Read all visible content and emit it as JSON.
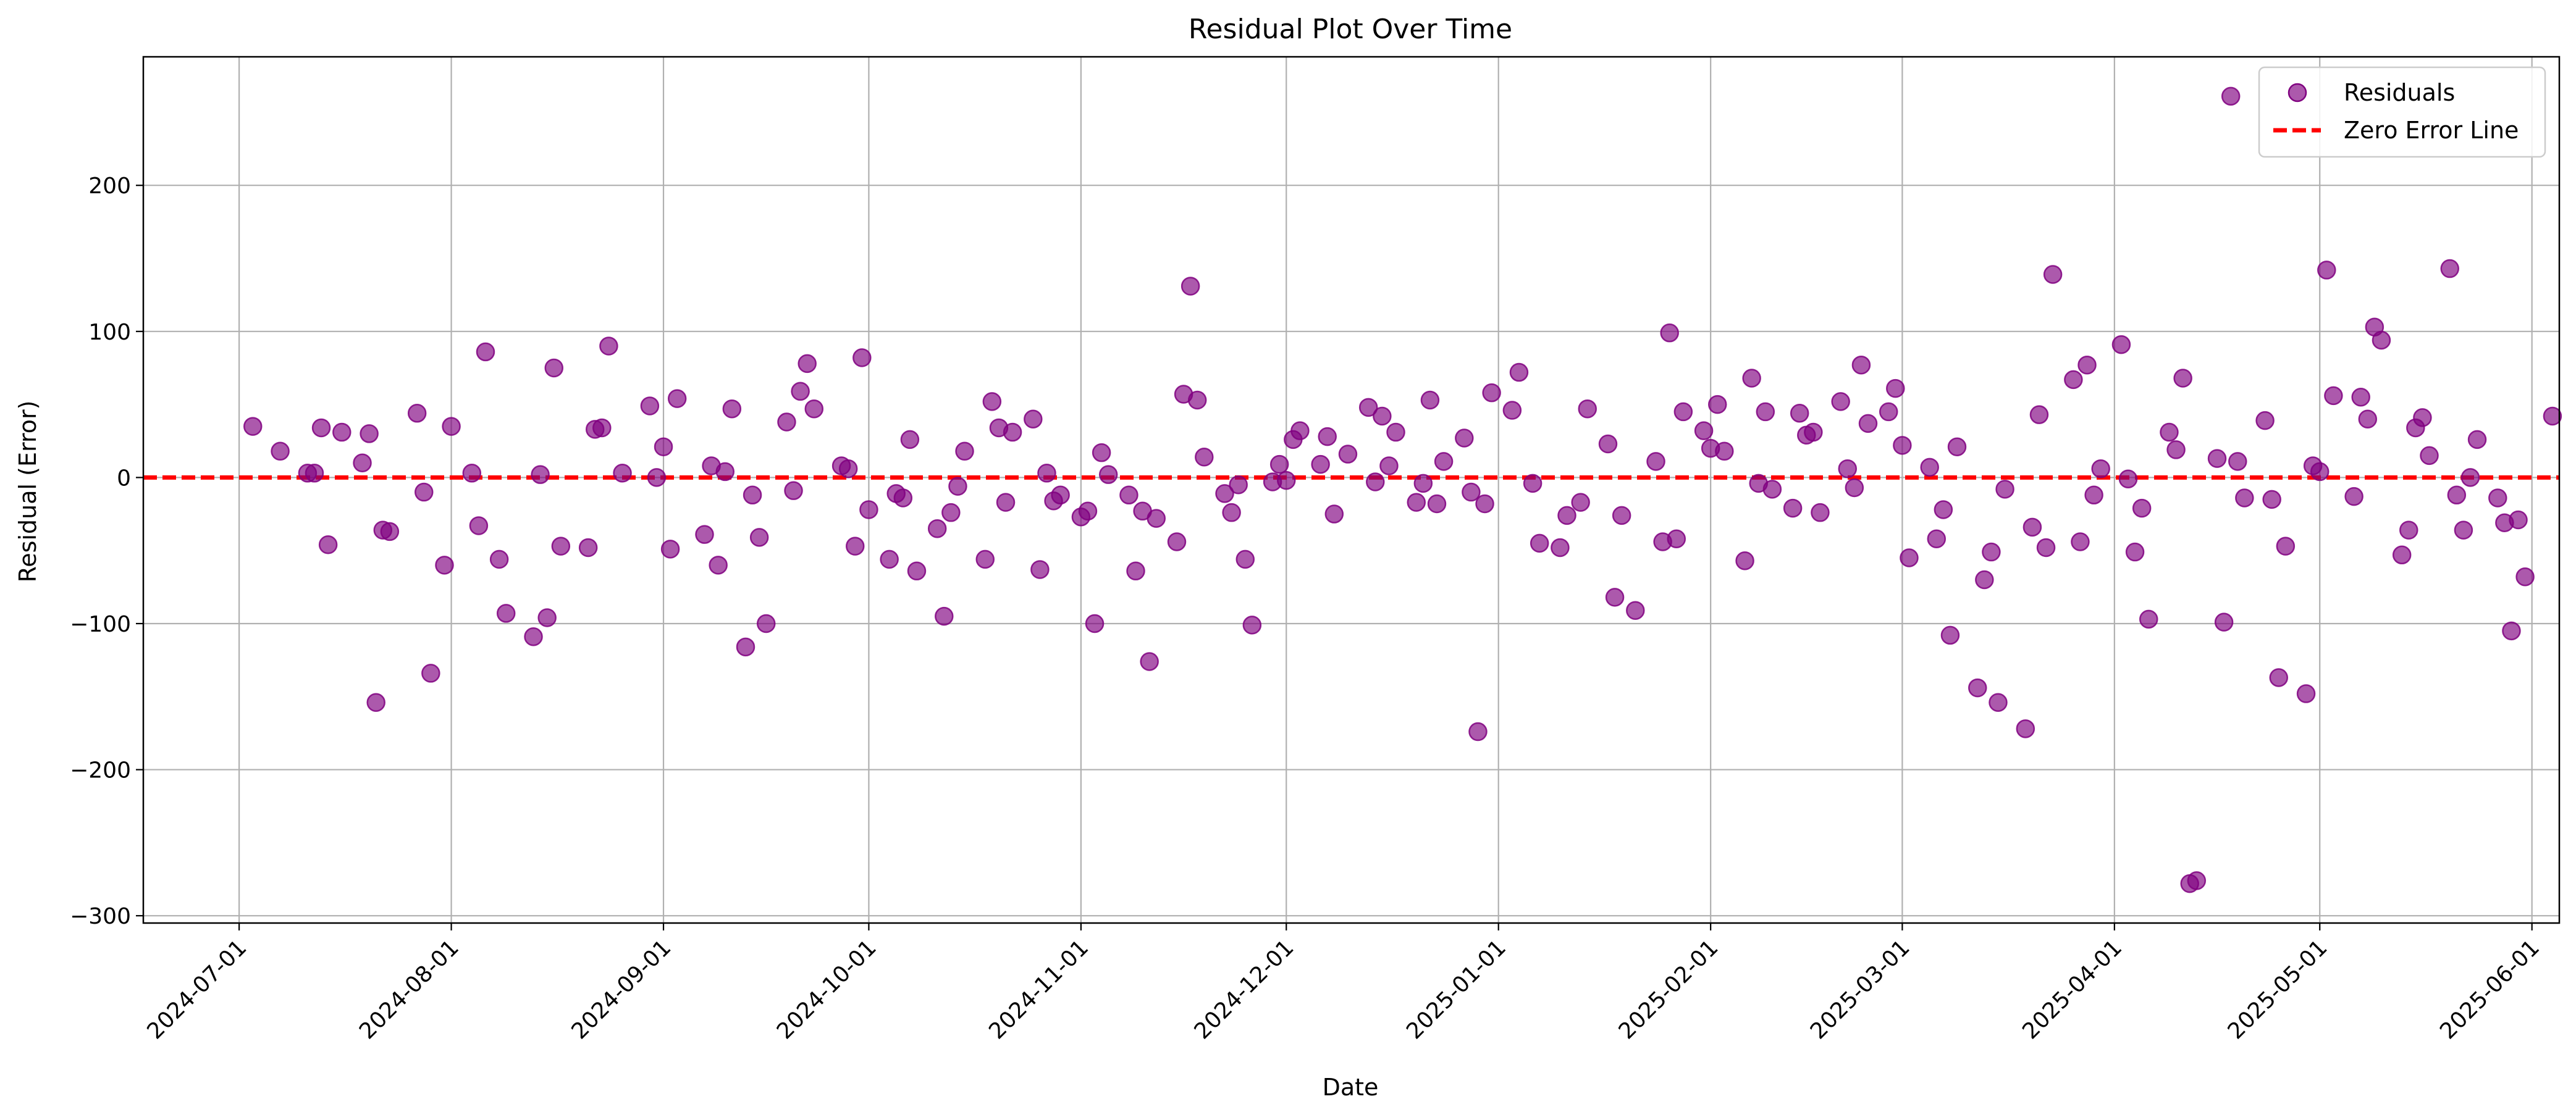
{
  "chart_data": {
    "type": "scatter",
    "title": "Residual Plot Over Time",
    "xlabel": "Date",
    "ylabel": "Residual (Error)",
    "xlim": [
      "2024-06-17",
      "2025-06-05"
    ],
    "ylim": [
      -305,
      288
    ],
    "grid": true,
    "legend_position": "upper right",
    "x_ticks": [
      "2024-07-01",
      "2024-08-01",
      "2024-09-01",
      "2024-10-01",
      "2024-11-01",
      "2024-12-01",
      "2025-01-01",
      "2025-02-01",
      "2025-03-01",
      "2025-04-01",
      "2025-05-01",
      "2025-06-01"
    ],
    "y_ticks": [
      -300,
      -200,
      -100,
      0,
      100,
      200
    ],
    "y_tick_labels": [
      "−300",
      "−200",
      "−100",
      "0",
      "100",
      "200"
    ],
    "series": [
      {
        "name": "Residuals",
        "kind": "scatter",
        "color": "#800080",
        "alpha": 0.65,
        "points": [
          [
            "2024-07-03",
            35
          ],
          [
            "2024-07-07",
            18
          ],
          [
            "2024-07-11",
            3
          ],
          [
            "2024-07-12",
            3
          ],
          [
            "2024-07-13",
            34
          ],
          [
            "2024-07-14",
            -46
          ],
          [
            "2024-07-16",
            31
          ],
          [
            "2024-07-19",
            10
          ],
          [
            "2024-07-20",
            30
          ],
          [
            "2024-07-21",
            -154
          ],
          [
            "2024-07-22",
            -36
          ],
          [
            "2024-07-23",
            -37
          ],
          [
            "2024-07-27",
            44
          ],
          [
            "2024-07-28",
            -10
          ],
          [
            "2024-07-29",
            -134
          ],
          [
            "2024-07-31",
            -60
          ],
          [
            "2024-08-01",
            35
          ],
          [
            "2024-08-04",
            3
          ],
          [
            "2024-08-05",
            -33
          ],
          [
            "2024-08-06",
            86
          ],
          [
            "2024-08-08",
            -56
          ],
          [
            "2024-08-09",
            -93
          ],
          [
            "2024-08-13",
            -109
          ],
          [
            "2024-08-14",
            2
          ],
          [
            "2024-08-15",
            -96
          ],
          [
            "2024-08-16",
            75
          ],
          [
            "2024-08-17",
            -47
          ],
          [
            "2024-08-21",
            -48
          ],
          [
            "2024-08-22",
            33
          ],
          [
            "2024-08-23",
            34
          ],
          [
            "2024-08-24",
            90
          ],
          [
            "2024-08-26",
            3
          ],
          [
            "2024-08-30",
            49
          ],
          [
            "2024-08-31",
            0
          ],
          [
            "2024-09-01",
            21
          ],
          [
            "2024-09-02",
            -49
          ],
          [
            "2024-09-03",
            54
          ],
          [
            "2024-09-07",
            -39
          ],
          [
            "2024-09-08",
            8
          ],
          [
            "2024-09-09",
            -60
          ],
          [
            "2024-09-10",
            4
          ],
          [
            "2024-09-11",
            47
          ],
          [
            "2024-09-13",
            -116
          ],
          [
            "2024-09-14",
            -12
          ],
          [
            "2024-09-15",
            -41
          ],
          [
            "2024-09-16",
            -100
          ],
          [
            "2024-09-19",
            38
          ],
          [
            "2024-09-20",
            -9
          ],
          [
            "2024-09-21",
            59
          ],
          [
            "2024-09-22",
            78
          ],
          [
            "2024-09-23",
            47
          ],
          [
            "2024-09-27",
            8
          ],
          [
            "2024-09-28",
            6
          ],
          [
            "2024-09-29",
            -47
          ],
          [
            "2024-09-30",
            82
          ],
          [
            "2024-10-01",
            -22
          ],
          [
            "2024-10-04",
            -56
          ],
          [
            "2024-10-05",
            -11
          ],
          [
            "2024-10-06",
            -14
          ],
          [
            "2024-10-07",
            26
          ],
          [
            "2024-10-08",
            -64
          ],
          [
            "2024-10-11",
            -35
          ],
          [
            "2024-10-12",
            -95
          ],
          [
            "2024-10-13",
            -24
          ],
          [
            "2024-10-14",
            -6
          ],
          [
            "2024-10-15",
            18
          ],
          [
            "2024-10-18",
            -56
          ],
          [
            "2024-10-19",
            52
          ],
          [
            "2024-10-20",
            34
          ],
          [
            "2024-10-21",
            -17
          ],
          [
            "2024-10-22",
            31
          ],
          [
            "2024-10-25",
            40
          ],
          [
            "2024-10-26",
            -63
          ],
          [
            "2024-10-27",
            3
          ],
          [
            "2024-10-28",
            -16
          ],
          [
            "2024-10-29",
            -12
          ],
          [
            "2024-11-01",
            -27
          ],
          [
            "2024-11-02",
            -23
          ],
          [
            "2024-11-03",
            -100
          ],
          [
            "2024-11-04",
            17
          ],
          [
            "2024-11-05",
            2
          ],
          [
            "2024-11-08",
            -12
          ],
          [
            "2024-11-09",
            -64
          ],
          [
            "2024-11-10",
            -23
          ],
          [
            "2024-11-11",
            -126
          ],
          [
            "2024-11-12",
            -28
          ],
          [
            "2024-11-15",
            -44
          ],
          [
            "2024-11-16",
            57
          ],
          [
            "2024-11-17",
            131
          ],
          [
            "2024-11-18",
            53
          ],
          [
            "2024-11-19",
            14
          ],
          [
            "2024-11-22",
            -11
          ],
          [
            "2024-11-23",
            -24
          ],
          [
            "2024-11-24",
            -5
          ],
          [
            "2024-11-25",
            -56
          ],
          [
            "2024-11-26",
            -101
          ],
          [
            "2024-11-29",
            -3
          ],
          [
            "2024-11-30",
            9
          ],
          [
            "2024-12-01",
            -2
          ],
          [
            "2024-12-02",
            26
          ],
          [
            "2024-12-03",
            32
          ],
          [
            "2024-12-06",
            9
          ],
          [
            "2024-12-07",
            28
          ],
          [
            "2024-12-08",
            -25
          ],
          [
            "2024-12-10",
            16
          ],
          [
            "2024-12-13",
            48
          ],
          [
            "2024-12-14",
            -3
          ],
          [
            "2024-12-15",
            42
          ],
          [
            "2024-12-16",
            8
          ],
          [
            "2024-12-17",
            31
          ],
          [
            "2024-12-20",
            -17
          ],
          [
            "2024-12-21",
            -4
          ],
          [
            "2024-12-22",
            53
          ],
          [
            "2024-12-23",
            -18
          ],
          [
            "2024-12-24",
            11
          ],
          [
            "2024-12-27",
            27
          ],
          [
            "2024-12-28",
            -10
          ],
          [
            "2024-12-29",
            -174
          ],
          [
            "2024-12-30",
            -18
          ],
          [
            "2024-12-31",
            58
          ],
          [
            "2025-01-03",
            46
          ],
          [
            "2025-01-04",
            72
          ],
          [
            "2025-01-06",
            -4
          ],
          [
            "2025-01-07",
            -45
          ],
          [
            "2025-01-10",
            -48
          ],
          [
            "2025-01-11",
            -26
          ],
          [
            "2025-01-13",
            -17
          ],
          [
            "2025-01-14",
            47
          ],
          [
            "2025-01-17",
            23
          ],
          [
            "2025-01-18",
            -82
          ],
          [
            "2025-01-19",
            -26
          ],
          [
            "2025-01-21",
            -91
          ],
          [
            "2025-01-24",
            11
          ],
          [
            "2025-01-25",
            -44
          ],
          [
            "2025-01-26",
            99
          ],
          [
            "2025-01-27",
            -42
          ],
          [
            "2025-01-28",
            45
          ],
          [
            "2025-01-31",
            32
          ],
          [
            "2025-02-01",
            20
          ],
          [
            "2025-02-02",
            50
          ],
          [
            "2025-02-03",
            18
          ],
          [
            "2025-02-06",
            -57
          ],
          [
            "2025-02-07",
            68
          ],
          [
            "2025-02-08",
            -4
          ],
          [
            "2025-02-09",
            45
          ],
          [
            "2025-02-10",
            -8
          ],
          [
            "2025-02-13",
            -21
          ],
          [
            "2025-02-14",
            44
          ],
          [
            "2025-02-15",
            29
          ],
          [
            "2025-02-16",
            31
          ],
          [
            "2025-02-17",
            -24
          ],
          [
            "2025-02-20",
            52
          ],
          [
            "2025-02-21",
            6
          ],
          [
            "2025-02-22",
            -7
          ],
          [
            "2025-02-23",
            77
          ],
          [
            "2025-02-24",
            37
          ],
          [
            "2025-02-27",
            45
          ],
          [
            "2025-02-28",
            61
          ],
          [
            "2025-03-01",
            22
          ],
          [
            "2025-03-02",
            -55
          ],
          [
            "2025-03-05",
            7
          ],
          [
            "2025-03-06",
            -42
          ],
          [
            "2025-03-07",
            -22
          ],
          [
            "2025-03-08",
            -108
          ],
          [
            "2025-03-09",
            21
          ],
          [
            "2025-03-12",
            -144
          ],
          [
            "2025-03-13",
            -70
          ],
          [
            "2025-03-14",
            -51
          ],
          [
            "2025-03-15",
            -154
          ],
          [
            "2025-03-16",
            -8
          ],
          [
            "2025-03-19",
            -172
          ],
          [
            "2025-03-20",
            -34
          ],
          [
            "2025-03-21",
            43
          ],
          [
            "2025-03-22",
            -48
          ],
          [
            "2025-03-23",
            139
          ],
          [
            "2025-03-26",
            67
          ],
          [
            "2025-03-27",
            -44
          ],
          [
            "2025-03-28",
            77
          ],
          [
            "2025-03-29",
            -12
          ],
          [
            "2025-03-30",
            6
          ],
          [
            "2025-04-02",
            91
          ],
          [
            "2025-04-03",
            -1
          ],
          [
            "2025-04-04",
            -51
          ],
          [
            "2025-04-05",
            -21
          ],
          [
            "2025-04-06",
            -97
          ],
          [
            "2025-04-09",
            31
          ],
          [
            "2025-04-10",
            19
          ],
          [
            "2025-04-11",
            68
          ],
          [
            "2025-04-12",
            -278
          ],
          [
            "2025-04-13",
            -276
          ],
          [
            "2025-04-16",
            13
          ],
          [
            "2025-04-17",
            -99
          ],
          [
            "2025-04-18",
            261
          ],
          [
            "2025-04-19",
            11
          ],
          [
            "2025-04-20",
            -14
          ],
          [
            "2025-04-23",
            39
          ],
          [
            "2025-04-24",
            -15
          ],
          [
            "2025-04-25",
            -137
          ],
          [
            "2025-04-26",
            -47
          ],
          [
            "2025-04-29",
            -148
          ],
          [
            "2025-04-30",
            8
          ],
          [
            "2025-05-01",
            4
          ],
          [
            "2025-05-02",
            142
          ],
          [
            "2025-05-03",
            56
          ],
          [
            "2025-05-06",
            -13
          ],
          [
            "2025-05-07",
            55
          ],
          [
            "2025-05-08",
            40
          ],
          [
            "2025-05-09",
            103
          ],
          [
            "2025-05-10",
            94
          ],
          [
            "2025-05-13",
            -53
          ],
          [
            "2025-05-14",
            -36
          ],
          [
            "2025-05-15",
            34
          ],
          [
            "2025-05-16",
            41
          ],
          [
            "2025-05-17",
            15
          ],
          [
            "2025-05-20",
            143
          ],
          [
            "2025-05-21",
            -12
          ],
          [
            "2025-05-22",
            -36
          ],
          [
            "2025-05-23",
            0
          ],
          [
            "2025-05-24",
            26
          ],
          [
            "2025-05-27",
            -14
          ],
          [
            "2025-05-28",
            -31
          ],
          [
            "2025-05-29",
            -105
          ],
          [
            "2025-05-30",
            -29
          ],
          [
            "2025-05-31",
            -68
          ],
          [
            "2025-06-04",
            42
          ]
        ]
      },
      {
        "name": "Zero Error Line",
        "kind": "hline",
        "y": 0,
        "color": "#ff0000",
        "dashed": true
      }
    ]
  }
}
